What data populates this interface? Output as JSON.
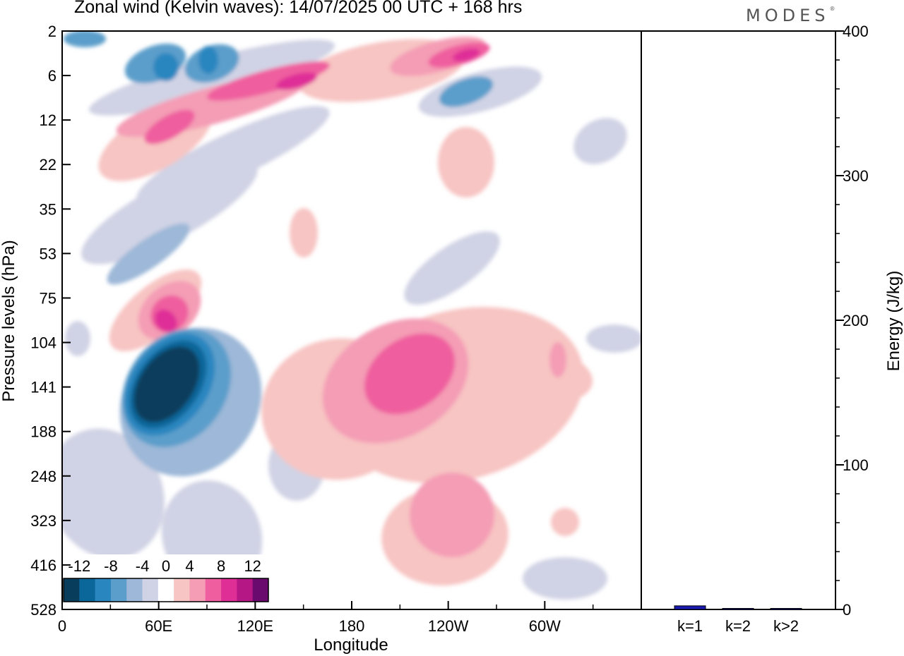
{
  "header": {
    "title": "Zonal wind (Kelvin waves):  14/07/2025  00 UTC  + 168 hrs",
    "brand": "MODES"
  },
  "chart_data": [
    {
      "type": "heatmap",
      "title": "Zonal wind (Kelvin waves):  14/07/2025  00 UTC  + 168 hrs",
      "xlabel": "Longitude",
      "ylabel": "Pressure levels (hPa)",
      "x_ticks": [
        "0",
        "60E",
        "120E",
        "180",
        "120W",
        "60W"
      ],
      "y_ticks": [
        "2",
        "6",
        "12",
        "22",
        "35",
        "53",
        "75",
        "104",
        "141",
        "188",
        "248",
        "323",
        "416",
        "528"
      ],
      "y_scale": "pressure levels (log-like)",
      "colorbar": {
        "labels": [
          "-12",
          "-8",
          "-4",
          "0",
          "4",
          "8",
          "12"
        ],
        "levels": [
          -14,
          -12,
          -10,
          -8,
          -6,
          -4,
          -2,
          2,
          4,
          6,
          8,
          10,
          12,
          14
        ],
        "colors": [
          "#083d5c",
          "#0b669a",
          "#2a86bf",
          "#5b9ecb",
          "#9db8d8",
          "#d0d3e5",
          "#ffffff",
          "#f7c5c3",
          "#f49db5",
          "#ef5e9f",
          "#df2f97",
          "#b51784",
          "#6b0a6e"
        ]
      },
      "features": [
        {
          "name": "easterly core",
          "lon": 75,
          "pressure": 141,
          "value": -14
        },
        {
          "name": "westerly maximum",
          "lon": 200,
          "pressure": 141,
          "value": 8
        },
        {
          "name": "westerly tongue",
          "lon": 65,
          "pressure": 90,
          "value": 10
        },
        {
          "name": "upper westerly band",
          "lon": 140,
          "pressure": 7,
          "value": 10
        }
      ]
    },
    {
      "type": "bar",
      "categories": [
        "k=1",
        "k=2",
        "k>2"
      ],
      "values": [
        2.5,
        0.6,
        0.6
      ],
      "ylabel": "Energy (J/kg)",
      "ylim": [
        0,
        400
      ],
      "y_ticks": [
        0,
        100,
        200,
        300,
        400
      ],
      "bar_color": "#1a1ab0"
    }
  ]
}
